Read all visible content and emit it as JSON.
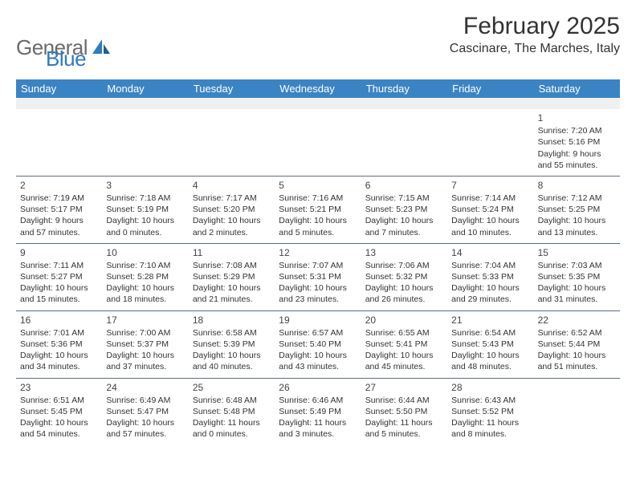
{
  "logo": {
    "text1": "General",
    "text2": "Blue"
  },
  "title": "February 2025",
  "location": "Cascinare, The Marches, Italy",
  "colors": {
    "header_bg": "#3b84c4",
    "header_text": "#ffffff",
    "divider": "#5a6f84",
    "blank_bg": "#f0f0f0",
    "body_text": "#333333",
    "logo_gray": "#6b6b6b",
    "logo_blue": "#2f7bbf"
  },
  "day_names": [
    "Sunday",
    "Monday",
    "Tuesday",
    "Wednesday",
    "Thursday",
    "Friday",
    "Saturday"
  ],
  "weeks": [
    [
      null,
      null,
      null,
      null,
      null,
      null,
      {
        "n": "1",
        "sr": "Sunrise: 7:20 AM",
        "ss": "Sunset: 5:16 PM",
        "d1": "Daylight: 9 hours",
        "d2": "and 55 minutes."
      }
    ],
    [
      {
        "n": "2",
        "sr": "Sunrise: 7:19 AM",
        "ss": "Sunset: 5:17 PM",
        "d1": "Daylight: 9 hours",
        "d2": "and 57 minutes."
      },
      {
        "n": "3",
        "sr": "Sunrise: 7:18 AM",
        "ss": "Sunset: 5:19 PM",
        "d1": "Daylight: 10 hours",
        "d2": "and 0 minutes."
      },
      {
        "n": "4",
        "sr": "Sunrise: 7:17 AM",
        "ss": "Sunset: 5:20 PM",
        "d1": "Daylight: 10 hours",
        "d2": "and 2 minutes."
      },
      {
        "n": "5",
        "sr": "Sunrise: 7:16 AM",
        "ss": "Sunset: 5:21 PM",
        "d1": "Daylight: 10 hours",
        "d2": "and 5 minutes."
      },
      {
        "n": "6",
        "sr": "Sunrise: 7:15 AM",
        "ss": "Sunset: 5:23 PM",
        "d1": "Daylight: 10 hours",
        "d2": "and 7 minutes."
      },
      {
        "n": "7",
        "sr": "Sunrise: 7:14 AM",
        "ss": "Sunset: 5:24 PM",
        "d1": "Daylight: 10 hours",
        "d2": "and 10 minutes."
      },
      {
        "n": "8",
        "sr": "Sunrise: 7:12 AM",
        "ss": "Sunset: 5:25 PM",
        "d1": "Daylight: 10 hours",
        "d2": "and 13 minutes."
      }
    ],
    [
      {
        "n": "9",
        "sr": "Sunrise: 7:11 AM",
        "ss": "Sunset: 5:27 PM",
        "d1": "Daylight: 10 hours",
        "d2": "and 15 minutes."
      },
      {
        "n": "10",
        "sr": "Sunrise: 7:10 AM",
        "ss": "Sunset: 5:28 PM",
        "d1": "Daylight: 10 hours",
        "d2": "and 18 minutes."
      },
      {
        "n": "11",
        "sr": "Sunrise: 7:08 AM",
        "ss": "Sunset: 5:29 PM",
        "d1": "Daylight: 10 hours",
        "d2": "and 21 minutes."
      },
      {
        "n": "12",
        "sr": "Sunrise: 7:07 AM",
        "ss": "Sunset: 5:31 PM",
        "d1": "Daylight: 10 hours",
        "d2": "and 23 minutes."
      },
      {
        "n": "13",
        "sr": "Sunrise: 7:06 AM",
        "ss": "Sunset: 5:32 PM",
        "d1": "Daylight: 10 hours",
        "d2": "and 26 minutes."
      },
      {
        "n": "14",
        "sr": "Sunrise: 7:04 AM",
        "ss": "Sunset: 5:33 PM",
        "d1": "Daylight: 10 hours",
        "d2": "and 29 minutes."
      },
      {
        "n": "15",
        "sr": "Sunrise: 7:03 AM",
        "ss": "Sunset: 5:35 PM",
        "d1": "Daylight: 10 hours",
        "d2": "and 31 minutes."
      }
    ],
    [
      {
        "n": "16",
        "sr": "Sunrise: 7:01 AM",
        "ss": "Sunset: 5:36 PM",
        "d1": "Daylight: 10 hours",
        "d2": "and 34 minutes."
      },
      {
        "n": "17",
        "sr": "Sunrise: 7:00 AM",
        "ss": "Sunset: 5:37 PM",
        "d1": "Daylight: 10 hours",
        "d2": "and 37 minutes."
      },
      {
        "n": "18",
        "sr": "Sunrise: 6:58 AM",
        "ss": "Sunset: 5:39 PM",
        "d1": "Daylight: 10 hours",
        "d2": "and 40 minutes."
      },
      {
        "n": "19",
        "sr": "Sunrise: 6:57 AM",
        "ss": "Sunset: 5:40 PM",
        "d1": "Daylight: 10 hours",
        "d2": "and 43 minutes."
      },
      {
        "n": "20",
        "sr": "Sunrise: 6:55 AM",
        "ss": "Sunset: 5:41 PM",
        "d1": "Daylight: 10 hours",
        "d2": "and 45 minutes."
      },
      {
        "n": "21",
        "sr": "Sunrise: 6:54 AM",
        "ss": "Sunset: 5:43 PM",
        "d1": "Daylight: 10 hours",
        "d2": "and 48 minutes."
      },
      {
        "n": "22",
        "sr": "Sunrise: 6:52 AM",
        "ss": "Sunset: 5:44 PM",
        "d1": "Daylight: 10 hours",
        "d2": "and 51 minutes."
      }
    ],
    [
      {
        "n": "23",
        "sr": "Sunrise: 6:51 AM",
        "ss": "Sunset: 5:45 PM",
        "d1": "Daylight: 10 hours",
        "d2": "and 54 minutes."
      },
      {
        "n": "24",
        "sr": "Sunrise: 6:49 AM",
        "ss": "Sunset: 5:47 PM",
        "d1": "Daylight: 10 hours",
        "d2": "and 57 minutes."
      },
      {
        "n": "25",
        "sr": "Sunrise: 6:48 AM",
        "ss": "Sunset: 5:48 PM",
        "d1": "Daylight: 11 hours",
        "d2": "and 0 minutes."
      },
      {
        "n": "26",
        "sr": "Sunrise: 6:46 AM",
        "ss": "Sunset: 5:49 PM",
        "d1": "Daylight: 11 hours",
        "d2": "and 3 minutes."
      },
      {
        "n": "27",
        "sr": "Sunrise: 6:44 AM",
        "ss": "Sunset: 5:50 PM",
        "d1": "Daylight: 11 hours",
        "d2": "and 5 minutes."
      },
      {
        "n": "28",
        "sr": "Sunrise: 6:43 AM",
        "ss": "Sunset: 5:52 PM",
        "d1": "Daylight: 11 hours",
        "d2": "and 8 minutes."
      },
      null
    ]
  ]
}
